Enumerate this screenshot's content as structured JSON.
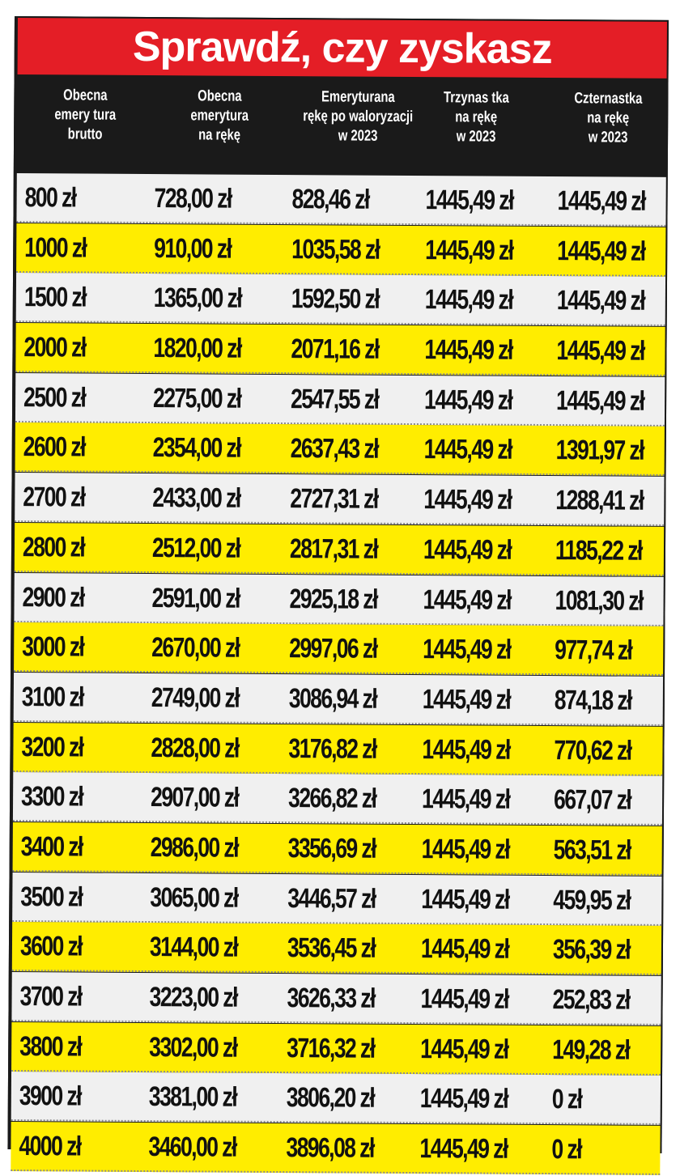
{
  "title": "Sprawdź, czy zyskasz",
  "headers": [
    "Obecna\nemery tura\nbrutto",
    "Obecna\nemerytura\nna rękę",
    "Emeryturana\nrękę po waloryzacji\nw 2023",
    "Trzynas tka\nna rękę\nw 2023",
    "Czternastka\nna rękę\nw 2023"
  ],
  "rows": [
    [
      "800 zł",
      "728,00 zł",
      "828,46 zł",
      "1445,49 zł",
      "1445,49 zł"
    ],
    [
      "1000 zł",
      "910,00 zł",
      "1035,58 zł",
      "1445,49 zł",
      "1445,49 zł"
    ],
    [
      "1500 zł",
      "1365,00 zł",
      "1592,50 zł",
      "1445,49 zł",
      "1445,49 zł"
    ],
    [
      "2000 zł",
      "1820,00 zł",
      "2071,16 zł",
      "1445,49 zł",
      "1445,49 zł"
    ],
    [
      "2500 zł",
      "2275,00 zł",
      "2547,55 zł",
      "1445,49 zł",
      "1445,49 zł"
    ],
    [
      "2600 zł",
      "2354,00 zł",
      "2637,43 zł",
      "1445,49 zł",
      "1391,97 zł"
    ],
    [
      "2700 zł",
      "2433,00 zł",
      "2727,31 zł",
      "1445,49 zł",
      "1288,41 zł"
    ],
    [
      "2800 zł",
      "2512,00 zł",
      "2817,31 zł",
      "1445,49 zł",
      "1185,22 zł"
    ],
    [
      "2900 zł",
      "2591,00 zł",
      "2925,18 zł",
      "1445,49 zł",
      "1081,30 zł"
    ],
    [
      "3000 zł",
      "2670,00 zł",
      "2997,06 zł",
      "1445,49 zł",
      "977,74 zł"
    ],
    [
      "3100 zł",
      "2749,00 zł",
      "3086,94 zł",
      "1445,49 zł",
      "874,18 zł"
    ],
    [
      "3200 zł",
      "2828,00 zł",
      "3176,82 zł",
      "1445,49 zł",
      "770,62 zł"
    ],
    [
      "3300 zł",
      "2907,00 zł",
      "3266,82 zł",
      "1445,49 zł",
      "667,07 zł"
    ],
    [
      "3400 zł",
      "2986,00 zł",
      "3356,69 zł",
      "1445,49 zł",
      "563,51 zł"
    ],
    [
      "3500 zł",
      "3065,00 zł",
      "3446,57 zł",
      "1445,49 zł",
      "459,95 zł"
    ],
    [
      "3600 zł",
      "3144,00 zł",
      "3536,45 zł",
      "1445,49 zł",
      "356,39 zł"
    ],
    [
      "3700 zł",
      "3223,00 zł",
      "3626,33 zł",
      "1445,49 zł",
      "252,83 zł"
    ],
    [
      "3800 zł",
      "3302,00 zł",
      "3716,32 zł",
      "1445,49 zł",
      "149,28 zł"
    ],
    [
      "3900 zł",
      "3381,00 zł",
      "3806,20 zł",
      "1445,49 zł",
      "0 zł"
    ],
    [
      "4000 zł",
      "3460,00 zł",
      "3896,08 zł",
      "1445,49 zł",
      "0 zł"
    ]
  ],
  "colors": {
    "title_bg": "#e41e26",
    "header_bg": "#1a1a1a",
    "row_light": "#f0f0f0",
    "row_yellow": "#ffed00"
  }
}
